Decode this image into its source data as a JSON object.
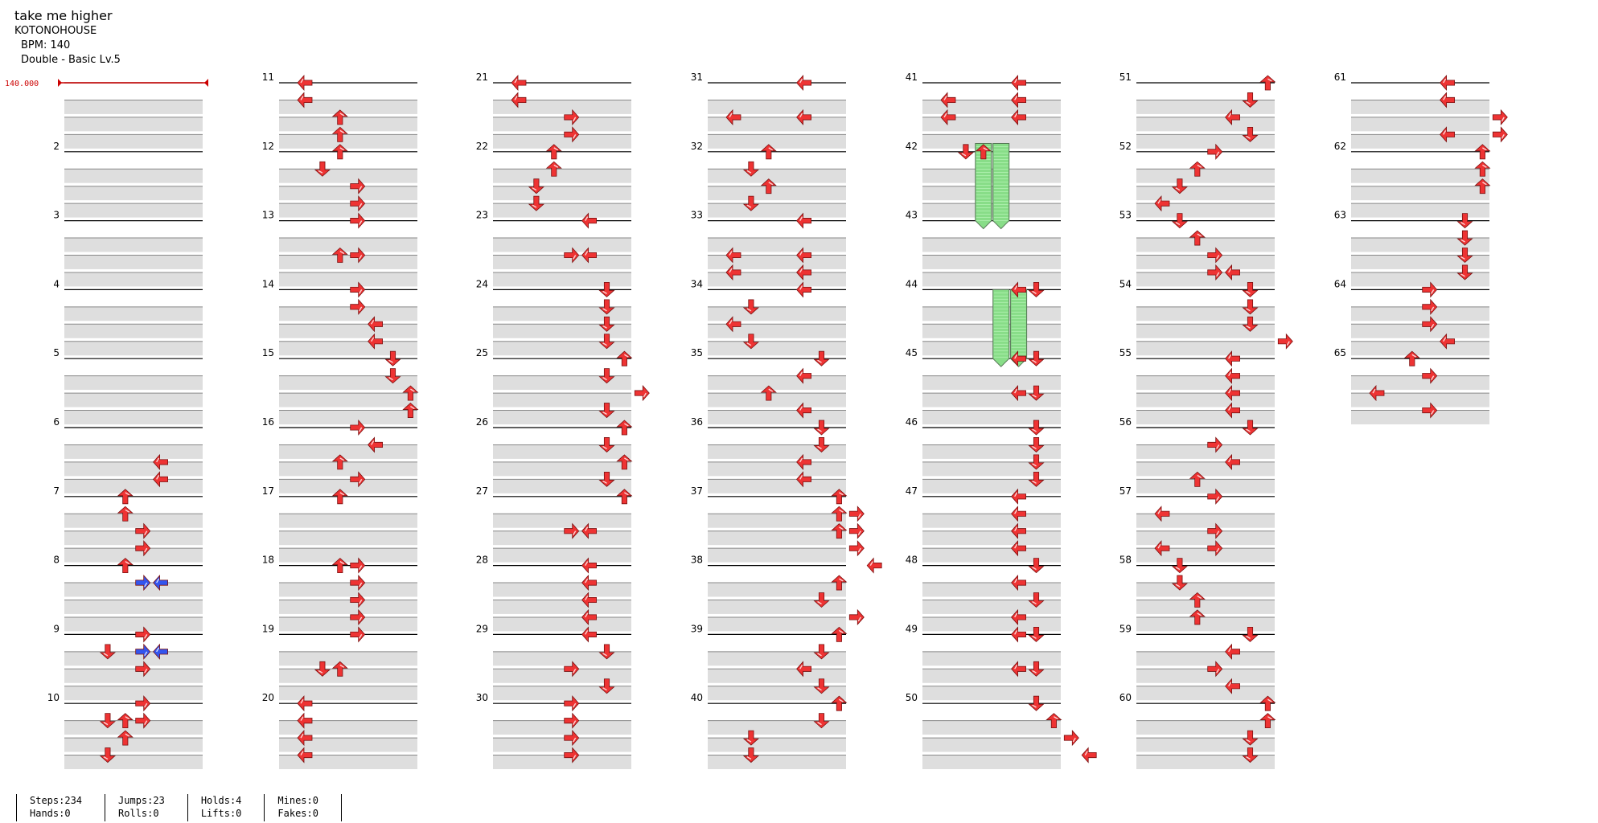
{
  "song": {
    "title": "take me higher",
    "artist": "KOTONOHOUSE",
    "bpm": "BPM: 140",
    "difficulty": "Double - Basic Lv.5"
  },
  "bpm_marker": "140.000",
  "columns": [
    {
      "measures": [
        "",
        "2",
        "3",
        "4",
        "5",
        "6",
        "7",
        "8",
        "9",
        "10"
      ]
    },
    {
      "measures": [
        "11",
        "12",
        "13",
        "14",
        "15",
        "16",
        "17",
        "18",
        "19",
        "20"
      ]
    },
    {
      "measures": [
        "21",
        "22",
        "23",
        "24",
        "25",
        "26",
        "27",
        "28",
        "29",
        "30"
      ]
    },
    {
      "measures": [
        "31",
        "32",
        "33",
        "34",
        "35",
        "36",
        "37",
        "38",
        "39",
        "40"
      ]
    },
    {
      "measures": [
        "41",
        "42",
        "43",
        "44",
        "45",
        "46",
        "47",
        "48",
        "49",
        "50"
      ]
    },
    {
      "measures": [
        "51",
        "52",
        "53",
        "54",
        "55",
        "56",
        "57",
        "58",
        "59",
        "60"
      ]
    },
    {
      "measures": [
        "61",
        "62",
        "63",
        "64",
        "65"
      ]
    }
  ],
  "colors": {
    "note": "#ee3333",
    "note_alt": "#3355ee",
    "hold": "#88dd88",
    "bpm": "#cc0000",
    "band": "#dedede"
  },
  "notes": [
    [
      [
        5,
        2,
        4
      ],
      [
        5,
        3,
        4
      ],
      [
        6,
        0,
        2
      ],
      [
        6,
        1,
        2
      ],
      [
        6,
        2,
        3
      ],
      [
        6,
        3,
        3
      ],
      [
        7,
        0,
        2
      ],
      [
        8,
        1,
        1
      ],
      [
        8,
        0,
        3
      ],
      [
        8,
        2,
        3
      ],
      [
        9,
        3,
        1
      ],
      [
        9,
        1,
        1
      ],
      [
        9,
        1,
        2
      ],
      [
        9,
        2,
        2
      ],
      [
        9,
        0,
        3
      ],
      [
        9,
        1,
        3
      ]
    ],
    [
      [
        0,
        0,
        0
      ],
      [
        0,
        1,
        0
      ],
      [
        0,
        2,
        2
      ],
      [
        0,
        3,
        2
      ],
      [
        1,
        0,
        2
      ],
      [
        1,
        1,
        1
      ],
      [
        1,
        2,
        3
      ],
      [
        1,
        3,
        3
      ],
      [
        2,
        0,
        3
      ],
      [
        2,
        2,
        2
      ],
      [
        2,
        2,
        3
      ],
      [
        3,
        0,
        3
      ],
      [
        3,
        1,
        3
      ],
      [
        3,
        2,
        4
      ],
      [
        3,
        3,
        4
      ],
      [
        4,
        0,
        5
      ],
      [
        4,
        1,
        5
      ],
      [
        4,
        2,
        6
      ],
      [
        4,
        3,
        6
      ],
      [
        5,
        0,
        3
      ],
      [
        5,
        1,
        4
      ],
      [
        5,
        2,
        2
      ],
      [
        5,
        3,
        3
      ],
      [
        6,
        0,
        2
      ],
      [
        7,
        0,
        2
      ],
      [
        7,
        0,
        3
      ],
      [
        7,
        1,
        3
      ],
      [
        7,
        2,
        3
      ],
      [
        7,
        3,
        3
      ],
      [
        8,
        0,
        3
      ],
      [
        8,
        2,
        1
      ],
      [
        8,
        2,
        2
      ],
      [
        9,
        0,
        0
      ],
      [
        9,
        1,
        0
      ],
      [
        9,
        2,
        0
      ],
      [
        9,
        3,
        0
      ]
    ],
    [
      [
        0,
        0,
        0
      ],
      [
        0,
        1,
        0
      ],
      [
        0,
        2,
        3
      ],
      [
        0,
        3,
        3
      ],
      [
        1,
        0,
        2
      ],
      [
        1,
        1,
        2
      ],
      [
        1,
        2,
        1
      ],
      [
        1,
        3,
        1
      ],
      [
        2,
        0,
        4
      ],
      [
        2,
        2,
        3
      ],
      [
        2,
        2,
        4
      ],
      [
        3,
        0,
        5
      ],
      [
        3,
        1,
        5
      ],
      [
        3,
        2,
        5
      ],
      [
        3,
        3,
        5
      ],
      [
        4,
        0,
        6
      ],
      [
        4,
        1,
        5
      ],
      [
        4,
        2,
        7
      ],
      [
        4,
        3,
        5
      ],
      [
        5,
        0,
        6
      ],
      [
        5,
        1,
        5
      ],
      [
        5,
        2,
        6
      ],
      [
        5,
        3,
        5
      ],
      [
        6,
        0,
        6
      ],
      [
        6,
        2,
        3
      ],
      [
        6,
        2,
        4
      ],
      [
        7,
        0,
        4
      ],
      [
        7,
        1,
        4
      ],
      [
        7,
        2,
        4
      ],
      [
        7,
        3,
        4
      ],
      [
        8,
        0,
        4
      ],
      [
        8,
        1,
        5
      ],
      [
        8,
        2,
        3
      ],
      [
        8,
        3,
        5
      ],
      [
        9,
        0,
        3
      ],
      [
        9,
        1,
        3
      ],
      [
        9,
        2,
        3
      ],
      [
        9,
        3,
        3
      ]
    ],
    [
      [
        0,
        0,
        4
      ],
      [
        0,
        2,
        0
      ],
      [
        0,
        2,
        4
      ],
      [
        1,
        0,
        2
      ],
      [
        1,
        1,
        1
      ],
      [
        1,
        2,
        2
      ],
      [
        1,
        3,
        1
      ],
      [
        2,
        0,
        4
      ],
      [
        2,
        2,
        0
      ],
      [
        2,
        2,
        4
      ],
      [
        2,
        3,
        0
      ],
      [
        2,
        3,
        4
      ],
      [
        3,
        0,
        4
      ],
      [
        3,
        1,
        1
      ],
      [
        3,
        2,
        0
      ],
      [
        3,
        3,
        1
      ],
      [
        4,
        0,
        5
      ],
      [
        4,
        1,
        4
      ],
      [
        4,
        2,
        2
      ],
      [
        4,
        3,
        4
      ],
      [
        5,
        0,
        5
      ],
      [
        5,
        1,
        5
      ],
      [
        5,
        2,
        4
      ],
      [
        5,
        3,
        4
      ],
      [
        6,
        0,
        6
      ],
      [
        6,
        1,
        6
      ],
      [
        6,
        1,
        7
      ],
      [
        6,
        2,
        7
      ],
      [
        6,
        2,
        6
      ],
      [
        6,
        3,
        7
      ],
      [
        7,
        0,
        8
      ],
      [
        7,
        1,
        6
      ],
      [
        7,
        2,
        5
      ],
      [
        7,
        3,
        7
      ],
      [
        8,
        0,
        6
      ],
      [
        8,
        1,
        5
      ],
      [
        8,
        2,
        4
      ],
      [
        8,
        3,
        5
      ],
      [
        9,
        0,
        6
      ],
      [
        9,
        1,
        5
      ],
      [
        9,
        2,
        1
      ],
      [
        9,
        3,
        1
      ]
    ],
    [
      [
        0,
        0,
        4
      ],
      [
        0,
        1,
        0
      ],
      [
        0,
        1,
        4
      ],
      [
        0,
        2,
        0
      ],
      [
        0,
        2,
        4
      ],
      [
        1,
        0,
        1
      ],
      [
        1,
        0,
        2
      ],
      [
        3,
        0,
        4
      ],
      [
        3,
        0,
        5
      ],
      [
        4,
        0,
        4
      ],
      [
        4,
        0,
        5
      ],
      [
        4,
        2,
        4
      ],
      [
        4,
        2,
        5
      ],
      [
        5,
        0,
        5
      ],
      [
        5,
        1,
        5
      ],
      [
        5,
        2,
        5
      ],
      [
        5,
        3,
        5
      ],
      [
        6,
        0,
        4
      ],
      [
        6,
        1,
        4
      ],
      [
        6,
        2,
        4
      ],
      [
        6,
        3,
        4
      ],
      [
        7,
        0,
        5
      ],
      [
        7,
        1,
        4
      ],
      [
        7,
        2,
        5
      ],
      [
        7,
        3,
        4
      ],
      [
        8,
        0,
        4
      ],
      [
        8,
        0,
        5
      ],
      [
        8,
        2,
        4
      ],
      [
        8,
        2,
        5
      ],
      [
        9,
        0,
        5
      ],
      [
        9,
        1,
        6
      ],
      [
        9,
        2,
        7
      ],
      [
        9,
        3,
        8
      ]
    ],
    [
      [
        0,
        0,
        6
      ],
      [
        0,
        1,
        5
      ],
      [
        0,
        2,
        4
      ],
      [
        0,
        3,
        5
      ],
      [
        1,
        0,
        3
      ],
      [
        1,
        1,
        2
      ],
      [
        1,
        2,
        1
      ],
      [
        1,
        3,
        0
      ],
      [
        2,
        0,
        1
      ],
      [
        2,
        1,
        2
      ],
      [
        2,
        2,
        3
      ],
      [
        2,
        3,
        3
      ],
      [
        2,
        3,
        4
      ],
      [
        3,
        0,
        5
      ],
      [
        3,
        1,
        5
      ],
      [
        3,
        2,
        5
      ],
      [
        3,
        3,
        7
      ],
      [
        4,
        0,
        4
      ],
      [
        4,
        1,
        4
      ],
      [
        4,
        2,
        4
      ],
      [
        4,
        3,
        4
      ],
      [
        5,
        0,
        5
      ],
      [
        5,
        1,
        3
      ],
      [
        5,
        2,
        4
      ],
      [
        5,
        3,
        2
      ],
      [
        6,
        0,
        3
      ],
      [
        6,
        1,
        0
      ],
      [
        6,
        2,
        3
      ],
      [
        6,
        3,
        0
      ],
      [
        6,
        3,
        3
      ],
      [
        7,
        0,
        1
      ],
      [
        7,
        1,
        1
      ],
      [
        7,
        2,
        2
      ],
      [
        7,
        3,
        2
      ],
      [
        8,
        0,
        5
      ],
      [
        8,
        1,
        4
      ],
      [
        8,
        2,
        3
      ],
      [
        8,
        3,
        4
      ],
      [
        9,
        0,
        6
      ],
      [
        9,
        1,
        6
      ],
      [
        9,
        2,
        5
      ],
      [
        9,
        3,
        5
      ]
    ],
    [
      [
        0,
        0,
        4
      ],
      [
        0,
        1,
        4
      ],
      [
        0,
        2,
        7
      ],
      [
        0,
        3,
        4
      ],
      [
        0,
        3,
        7
      ],
      [
        1,
        0,
        6
      ],
      [
        1,
        1,
        6
      ],
      [
        1,
        2,
        6
      ],
      [
        2,
        0,
        5
      ],
      [
        2,
        1,
        5
      ],
      [
        2,
        2,
        5
      ],
      [
        2,
        3,
        5
      ],
      [
        3,
        0,
        3
      ],
      [
        3,
        1,
        3
      ],
      [
        3,
        2,
        3
      ],
      [
        3,
        3,
        4
      ],
      [
        4,
        0,
        2
      ],
      [
        4,
        1,
        3
      ],
      [
        4,
        2,
        0
      ],
      [
        4,
        3,
        3
      ]
    ]
  ],
  "blue_notes": [
    [
      7,
      1,
      3
    ],
    [
      7,
      1,
      4
    ],
    [
      8,
      1,
      3
    ],
    [
      8,
      1,
      4
    ]
  ],
  "holds": [
    [
      4,
      0.88,
      2.0,
      2
    ],
    [
      4,
      0.88,
      2.0,
      3
    ],
    [
      4,
      3.0,
      4.0,
      3
    ],
    [
      4,
      3.0,
      4.0,
      4
    ]
  ],
  "stats": {
    "steps": "Steps:234",
    "jumps": "Jumps:23",
    "holds": "Holds:4",
    "mines": "Mines:0",
    "hands": "Hands:0",
    "rolls": "Rolls:0",
    "lifts": "Lifts:0",
    "fakes": "Fakes:0"
  }
}
